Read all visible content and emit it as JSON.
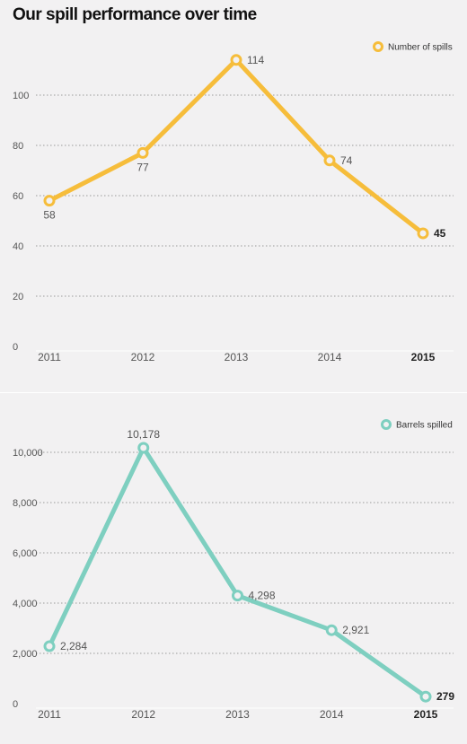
{
  "page": {
    "title": "Our spill performance over time"
  },
  "chart_data": [
    {
      "type": "line",
      "x": [
        "2011",
        "2012",
        "2013",
        "2014",
        "2015"
      ],
      "series": [
        {
          "name": "Number of spills",
          "values": [
            58,
            77,
            114,
            74,
            45
          ],
          "color": "#f6bd3b"
        }
      ],
      "labels": [
        "58",
        "77",
        "114",
        "74",
        "45"
      ],
      "ylim": [
        0,
        120
      ],
      "yticks": [
        0,
        20,
        40,
        60,
        80,
        100
      ],
      "ytick_labels": [
        "0",
        "20",
        "40",
        "60",
        "80",
        "100"
      ],
      "label_positions": [
        "below",
        "below",
        "right",
        "right",
        "right"
      ],
      "bold_last": true,
      "grid": true,
      "legend": "top-right",
      "title": "",
      "xlabel": "",
      "ylabel": ""
    },
    {
      "type": "line",
      "x": [
        "2011",
        "2012",
        "2013",
        "2014",
        "2015"
      ],
      "series": [
        {
          "name": "Barrels spilled",
          "values": [
            2284,
            10178,
            4298,
            2921,
            279
          ],
          "color": "#7ecfc0"
        }
      ],
      "labels": [
        "2,284",
        "10,178",
        "4,298",
        "2,921",
        "279"
      ],
      "ylim": [
        0,
        11000
      ],
      "yticks": [
        0,
        2000,
        4000,
        6000,
        8000,
        10000
      ],
      "ytick_labels": [
        "0",
        "2,000",
        "4,000",
        "6,000",
        "8,000",
        "10,000"
      ],
      "label_positions": [
        "right",
        "above",
        "right",
        "right",
        "right"
      ],
      "bold_last": true,
      "grid": true,
      "legend": "top-right",
      "title": "",
      "xlabel": "",
      "ylabel": ""
    }
  ]
}
